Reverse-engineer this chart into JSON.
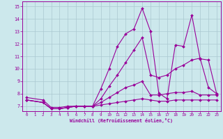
{
  "xlabel": "Windchill (Refroidissement éolien,°C)",
  "bg_color": "#cce8ec",
  "grid_color": "#aac8d0",
  "line_color": "#990099",
  "xlim": [
    -0.5,
    23.5
  ],
  "ylim": [
    6.6,
    15.4
  ],
  "xticks": [
    0,
    1,
    2,
    3,
    4,
    5,
    6,
    7,
    8,
    9,
    10,
    11,
    12,
    13,
    14,
    15,
    16,
    17,
    18,
    19,
    20,
    21,
    22,
    23
  ],
  "yticks": [
    7,
    8,
    9,
    10,
    11,
    12,
    13,
    14,
    15
  ],
  "series": [
    {
      "x": [
        0,
        2,
        3,
        4,
        5,
        6,
        7,
        8,
        9,
        10,
        11,
        12,
        13,
        14,
        15,
        16,
        17,
        18,
        19,
        20,
        21,
        22,
        23
      ],
      "y": [
        7.5,
        7.3,
        6.8,
        6.8,
        6.9,
        7.0,
        7.0,
        7.0,
        8.4,
        10.0,
        11.8,
        12.8,
        13.2,
        14.85,
        13.0,
        8.05,
        7.6,
        11.9,
        11.8,
        14.3,
        10.8,
        10.7,
        8.0
      ]
    },
    {
      "x": [
        0,
        2,
        3,
        4,
        5,
        6,
        7,
        8,
        9,
        10,
        11,
        12,
        13,
        14,
        15,
        16,
        17,
        18,
        19,
        20,
        21,
        22,
        23
      ],
      "y": [
        7.5,
        7.3,
        6.8,
        6.8,
        6.9,
        7.0,
        7.0,
        7.0,
        7.6,
        8.6,
        9.5,
        10.5,
        11.5,
        12.5,
        9.5,
        9.3,
        9.5,
        10.0,
        10.3,
        10.7,
        10.85,
        8.5,
        8.0
      ]
    },
    {
      "x": [
        0,
        2,
        3,
        4,
        5,
        6,
        7,
        8,
        9,
        10,
        11,
        12,
        13,
        14,
        15,
        16,
        17,
        18,
        19,
        20,
        21,
        22,
        23
      ],
      "y": [
        7.7,
        7.5,
        6.9,
        6.9,
        7.0,
        7.0,
        7.0,
        7.0,
        7.3,
        7.7,
        8.1,
        8.5,
        8.7,
        9.0,
        7.9,
        7.9,
        8.0,
        8.1,
        8.1,
        8.2,
        7.9,
        7.9,
        7.9
      ]
    },
    {
      "x": [
        0,
        2,
        3,
        4,
        5,
        6,
        7,
        8,
        9,
        10,
        11,
        12,
        13,
        14,
        15,
        16,
        17,
        18,
        19,
        20,
        21,
        22,
        23
      ],
      "y": [
        7.5,
        7.3,
        6.8,
        6.8,
        6.9,
        7.0,
        7.0,
        7.0,
        7.1,
        7.2,
        7.3,
        7.4,
        7.5,
        7.6,
        7.5,
        7.4,
        7.4,
        7.5,
        7.5,
        7.5,
        7.5,
        7.5,
        7.5
      ]
    }
  ]
}
